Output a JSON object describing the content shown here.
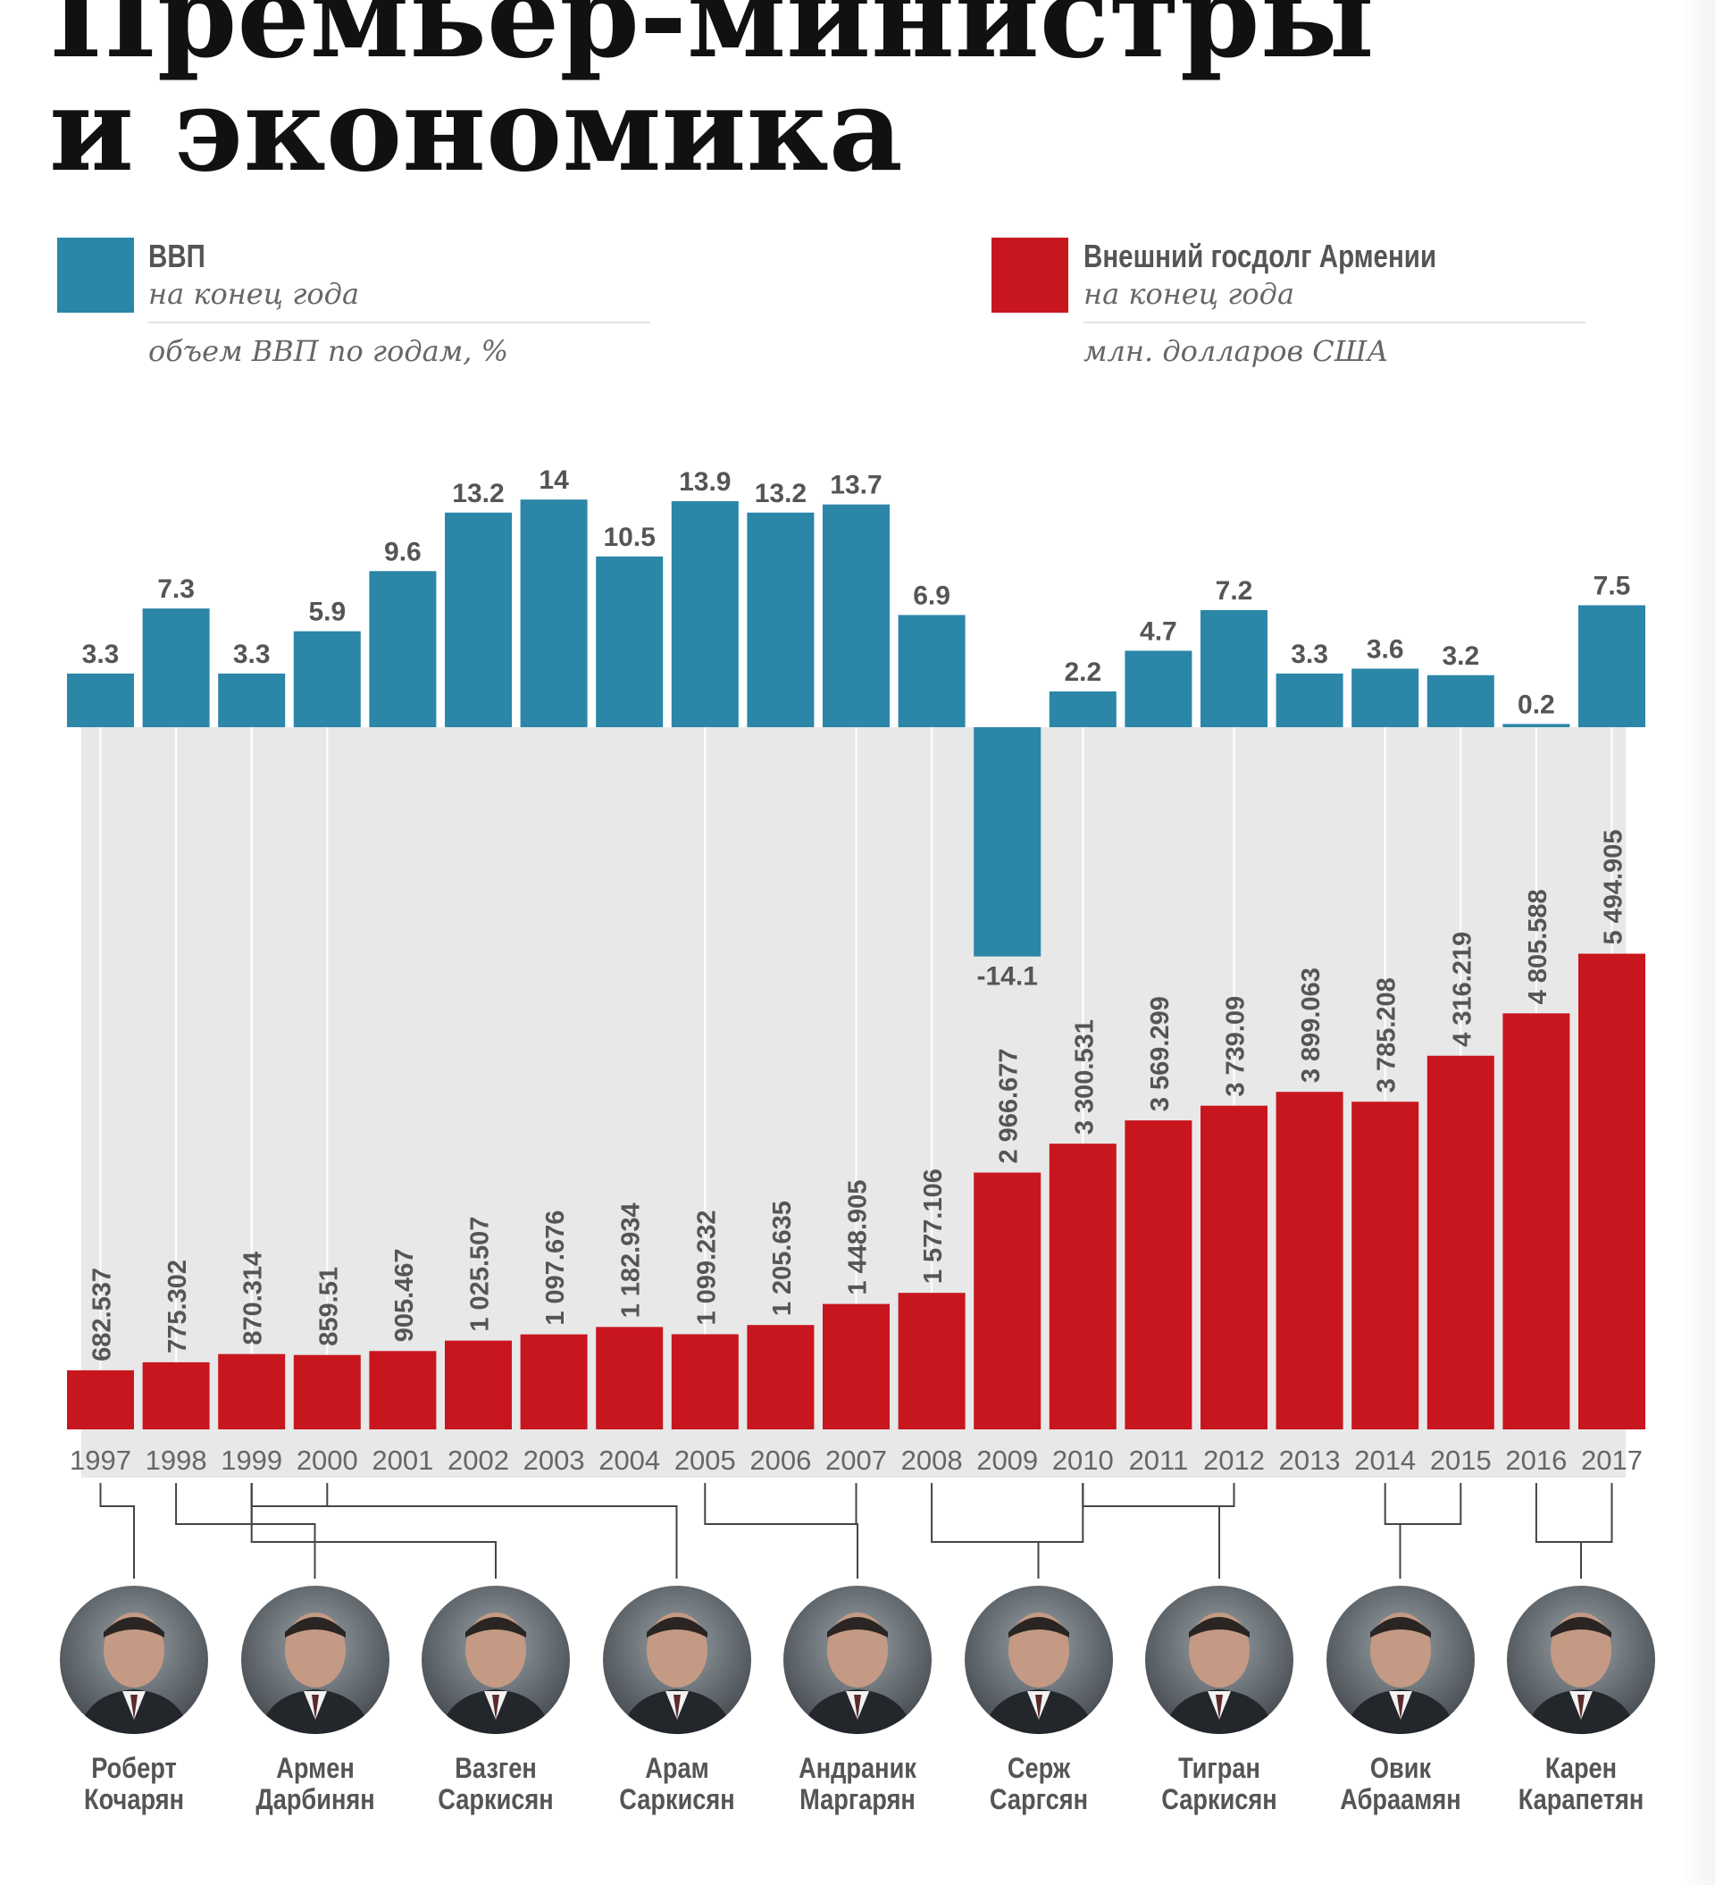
{
  "title": {
    "line1": "Премьер-министры",
    "line2": "и экономика"
  },
  "legend": {
    "gdp": {
      "label": "ВВП",
      "subtitle": "на конец года",
      "unit": "объем ВВП по годам, %",
      "color": "#2b86a8"
    },
    "debt": {
      "label": "Внешний госдолг Армении",
      "subtitle": "на конец года",
      "unit": "млн. долларов США",
      "color": "#c8161e"
    }
  },
  "chart_data": {
    "type": "bar",
    "categories": [
      "1997",
      "1998",
      "1999",
      "2000",
      "2001",
      "2002",
      "2003",
      "2004",
      "2005",
      "2006",
      "2007",
      "2008",
      "2009",
      "2010",
      "2011",
      "2012",
      "2013",
      "2014",
      "2015",
      "2016",
      "2017"
    ],
    "series": [
      {
        "name": "ВВП",
        "values": [
          3.3,
          7.3,
          3.3,
          5.9,
          9.6,
          13.2,
          14,
          10.5,
          13.9,
          13.2,
          13.7,
          6.9,
          -14.1,
          2.2,
          4.7,
          7.2,
          3.3,
          3.6,
          3.2,
          0.2,
          7.5
        ],
        "labels": [
          "3.3",
          "7.3",
          "3.3",
          "5.9",
          "9.6",
          "13.2",
          "14",
          "10.5",
          "13.9",
          "13.2",
          "13.7",
          "6.9",
          "-14.1",
          "2.2",
          "4.7",
          "7.2",
          "3.3",
          "3.6",
          "3.2",
          "0.2",
          "7.5"
        ]
      },
      {
        "name": "Внешний госдолг Армении",
        "values": [
          682.537,
          775.302,
          870.314,
          859.51,
          905.467,
          1025.507,
          1097.676,
          1182.934,
          1099.232,
          1205.635,
          1448.905,
          1577.106,
          2966.677,
          3300.531,
          3569.299,
          3739.09,
          3899.063,
          3785.208,
          4316.219,
          4805.588,
          5494.905
        ],
        "labels": [
          "682.537",
          "775.302",
          "870.314",
          "859.51",
          "905.467",
          "1 025.507",
          "1 097.676",
          "1 182.934",
          "1 099.232",
          "1 205.635",
          "1 448.905",
          "1 577.106",
          "2 966.677",
          "3 300.531",
          "3 569.299",
          "3 739.09",
          "3 899.063",
          "3 785.208",
          "4 316.219",
          "4 805.588",
          "5 494.905"
        ]
      }
    ]
  },
  "prime_ministers": [
    {
      "first": "Роберт",
      "last": "Кочарян",
      "from_index": 0,
      "to_index": 0
    },
    {
      "first": "Армен",
      "last": "Дарбинян",
      "from_index": 1,
      "to_index": 2
    },
    {
      "first": "Вазген",
      "last": "Саркисян",
      "from_index": 2,
      "to_index": 2
    },
    {
      "first": "Арам",
      "last": "Саркисян",
      "from_index": 2,
      "to_index": 3
    },
    {
      "first": "Андраник",
      "last": "Маргарян",
      "from_index": 8,
      "to_index": 10
    },
    {
      "first": "Серж",
      "last": "Саргсян",
      "from_index": 11,
      "to_index": 13
    },
    {
      "first": "Тигран",
      "last": "Саркисян",
      "from_index": 13,
      "to_index": 15
    },
    {
      "first": "Овик",
      "last": "Абраамян",
      "from_index": 17,
      "to_index": 18
    },
    {
      "first": "Карен",
      "last": "Карапетян",
      "from_index": 19,
      "to_index": 20
    }
  ],
  "colors": {
    "background": "#ffffff",
    "panel": "#e8e8e8",
    "guide_line": "#ffffff",
    "value_text": "#555555",
    "connector": "#444444"
  }
}
